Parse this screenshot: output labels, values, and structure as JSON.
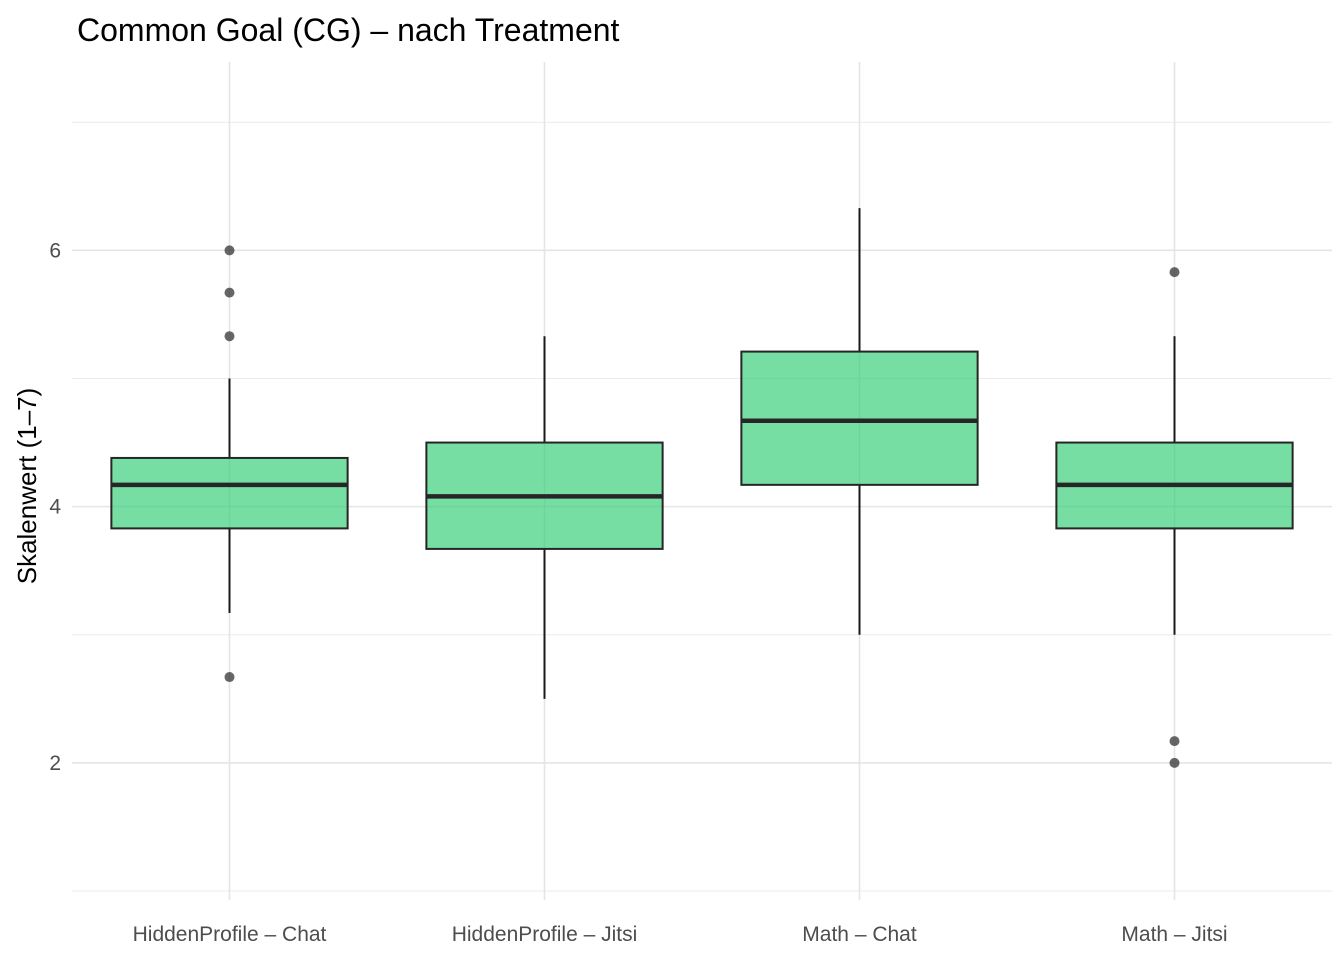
{
  "chart_data": {
    "type": "boxplot",
    "title": "Common Goal (CG) – nach Treatment",
    "xlabel": "",
    "ylabel": "Skalenwert (1–7)",
    "ylim": [
      1,
      7
    ],
    "yticks": [
      2,
      4,
      6
    ],
    "grid": true,
    "box_color": "#2ecc71",
    "categories": [
      "HiddenProfile – Chat",
      "HiddenProfile – Jitsi",
      "Math – Chat",
      "Math – Jitsi"
    ],
    "boxes": [
      {
        "category": "HiddenProfile – Chat",
        "whisker_low": 3.17,
        "q1": 3.83,
        "median": 4.17,
        "q3": 4.38,
        "whisker_high": 5.0,
        "outliers": [
          6.0,
          5.67,
          5.33,
          2.67
        ]
      },
      {
        "category": "HiddenProfile – Jitsi",
        "whisker_low": 2.5,
        "q1": 3.67,
        "median": 4.08,
        "q3": 4.5,
        "whisker_high": 5.33,
        "outliers": []
      },
      {
        "category": "Math – Chat",
        "whisker_low": 3.0,
        "q1": 4.17,
        "median": 4.67,
        "q3": 5.21,
        "whisker_high": 6.33,
        "outliers": []
      },
      {
        "category": "Math – Jitsi",
        "whisker_low": 3.0,
        "q1": 3.83,
        "median": 4.17,
        "q3": 4.5,
        "whisker_high": 5.33,
        "outliers": [
          5.83,
          2.17,
          2.0
        ]
      }
    ]
  }
}
